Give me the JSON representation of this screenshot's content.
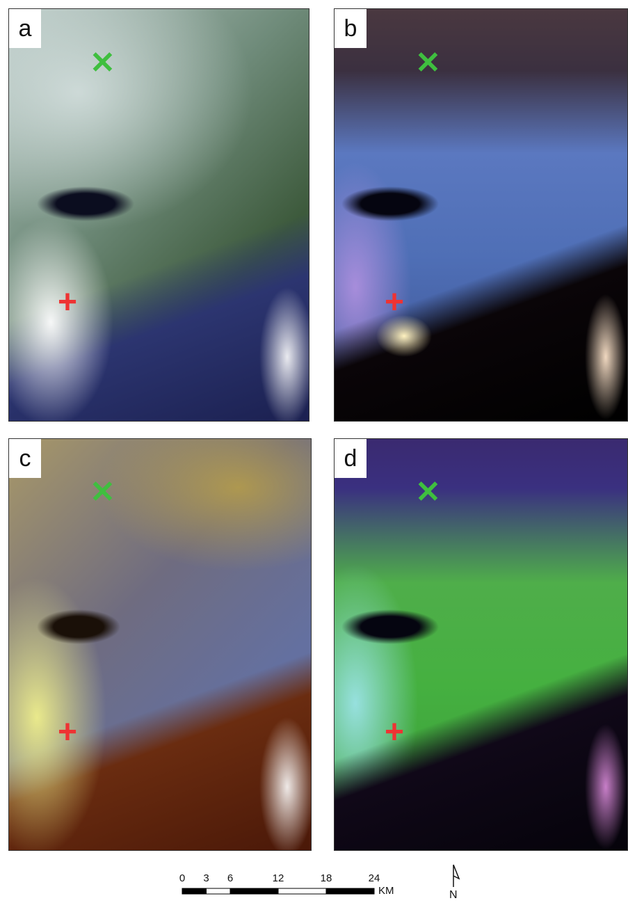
{
  "panels": [
    {
      "label": "a"
    },
    {
      "label": "b"
    },
    {
      "label": "c"
    },
    {
      "label": "d"
    }
  ],
  "scale_bar": {
    "ticks": [
      0,
      3,
      6,
      12,
      18,
      24
    ],
    "unit": "KM"
  },
  "north_arrow": {
    "label": "N"
  }
}
